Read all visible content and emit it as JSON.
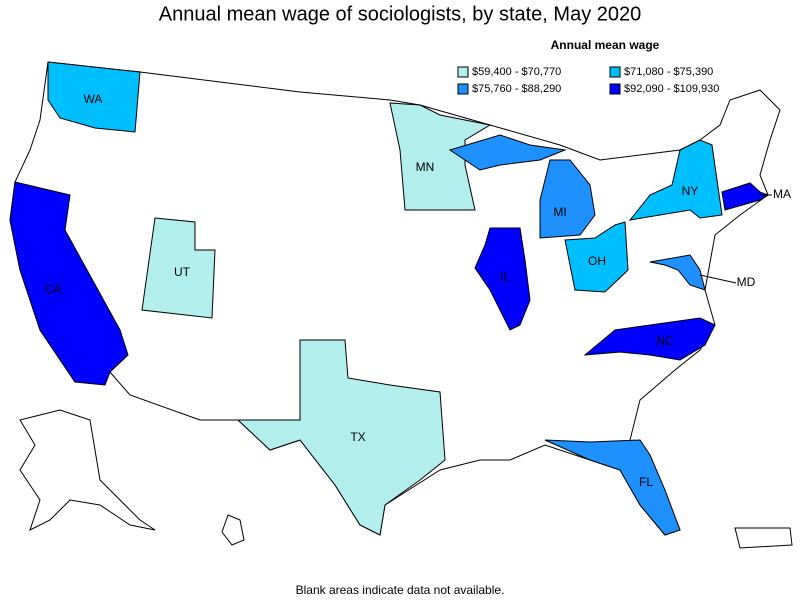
{
  "title": "Annual mean wage of sociologists, by state, May 2020",
  "legend": {
    "title": "Annual mean wage",
    "items": [
      {
        "label": "$59,400 - $70,770",
        "color": "#b2eeee"
      },
      {
        "label": "$71,080 - $75,390",
        "color": "#00bfff"
      },
      {
        "label": "$75,760 - $88,290",
        "color": "#1e90ff"
      },
      {
        "label": "$92,090 - $109,930",
        "color": "#0000ff"
      }
    ]
  },
  "states": [
    {
      "label": "WA",
      "color": "#00bfff"
    },
    {
      "label": "CA",
      "color": "#0000ff"
    },
    {
      "label": "UT",
      "color": "#b2eeee"
    },
    {
      "label": "MN",
      "color": "#b2eeee"
    },
    {
      "label": "TX",
      "color": "#b2eeee"
    },
    {
      "label": "MI",
      "color": "#1e90ff"
    },
    {
      "label": "IL",
      "color": "#0000ff"
    },
    {
      "label": "OH",
      "color": "#00bfff"
    },
    {
      "label": "NY",
      "color": "#00bfff"
    },
    {
      "label": "MA",
      "color": "#0000ff"
    },
    {
      "label": "MD",
      "color": "#1e90ff"
    },
    {
      "label": "NC",
      "color": "#0000ff"
    },
    {
      "label": "FL",
      "color": "#1e90ff"
    }
  ],
  "footnote": "Blank areas indicate data not available."
}
